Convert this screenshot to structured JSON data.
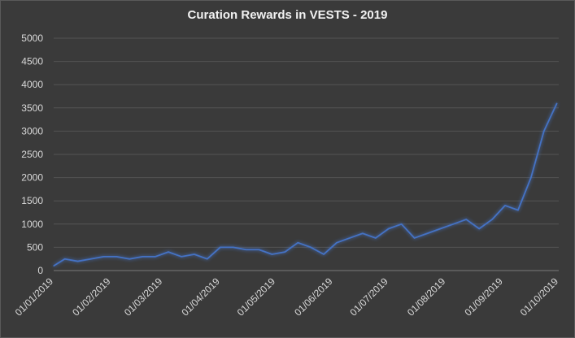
{
  "chart_data": {
    "type": "line",
    "title": "Curation Rewards in VESTS - 2019",
    "xlabel": "",
    "ylabel": "",
    "ylim": [
      0,
      5000
    ],
    "yticks": [
      0,
      500,
      1000,
      1500,
      2000,
      2500,
      3000,
      3500,
      4000,
      4500,
      5000
    ],
    "x_tick_labels": [
      "01/01/2019",
      "01/02/2019",
      "01/03/2019",
      "01/04/2019",
      "01/05/2019",
      "01/06/2019",
      "01/07/2019",
      "01/08/2019",
      "01/09/2019",
      "01/10/2019"
    ],
    "x_start": "01/01/2019",
    "x_end": "01/10/2019",
    "grid": "horizontal",
    "legend": "none",
    "line_color": "#4472c4",
    "series": [
      {
        "x": [
          "01/01/2019",
          "07/01/2019",
          "14/01/2019",
          "21/01/2019",
          "28/01/2019",
          "04/02/2019",
          "11/02/2019",
          "18/02/2019",
          "25/02/2019",
          "04/03/2019",
          "11/03/2019",
          "18/03/2019",
          "25/03/2019",
          "01/04/2019",
          "08/04/2019",
          "15/04/2019",
          "22/04/2019",
          "29/04/2019",
          "06/05/2019",
          "13/05/2019",
          "20/05/2019",
          "27/05/2019",
          "03/06/2019",
          "10/06/2019",
          "17/06/2019",
          "24/06/2019",
          "01/07/2019",
          "08/07/2019",
          "15/07/2019",
          "22/07/2019",
          "29/07/2019",
          "05/08/2019",
          "12/08/2019",
          "19/08/2019",
          "26/08/2019",
          "02/09/2019",
          "09/09/2019",
          "16/09/2019",
          "23/09/2019",
          "30/09/2019"
        ],
        "values": [
          100,
          250,
          200,
          250,
          300,
          300,
          250,
          300,
          300,
          400,
          300,
          350,
          250,
          500,
          500,
          450,
          450,
          350,
          400,
          600,
          500,
          350,
          600,
          700,
          800,
          700,
          900,
          1000,
          700,
          800,
          900,
          1000,
          1100,
          900,
          1100,
          1400,
          1300,
          2000,
          3000,
          3600
        ]
      }
    ]
  }
}
